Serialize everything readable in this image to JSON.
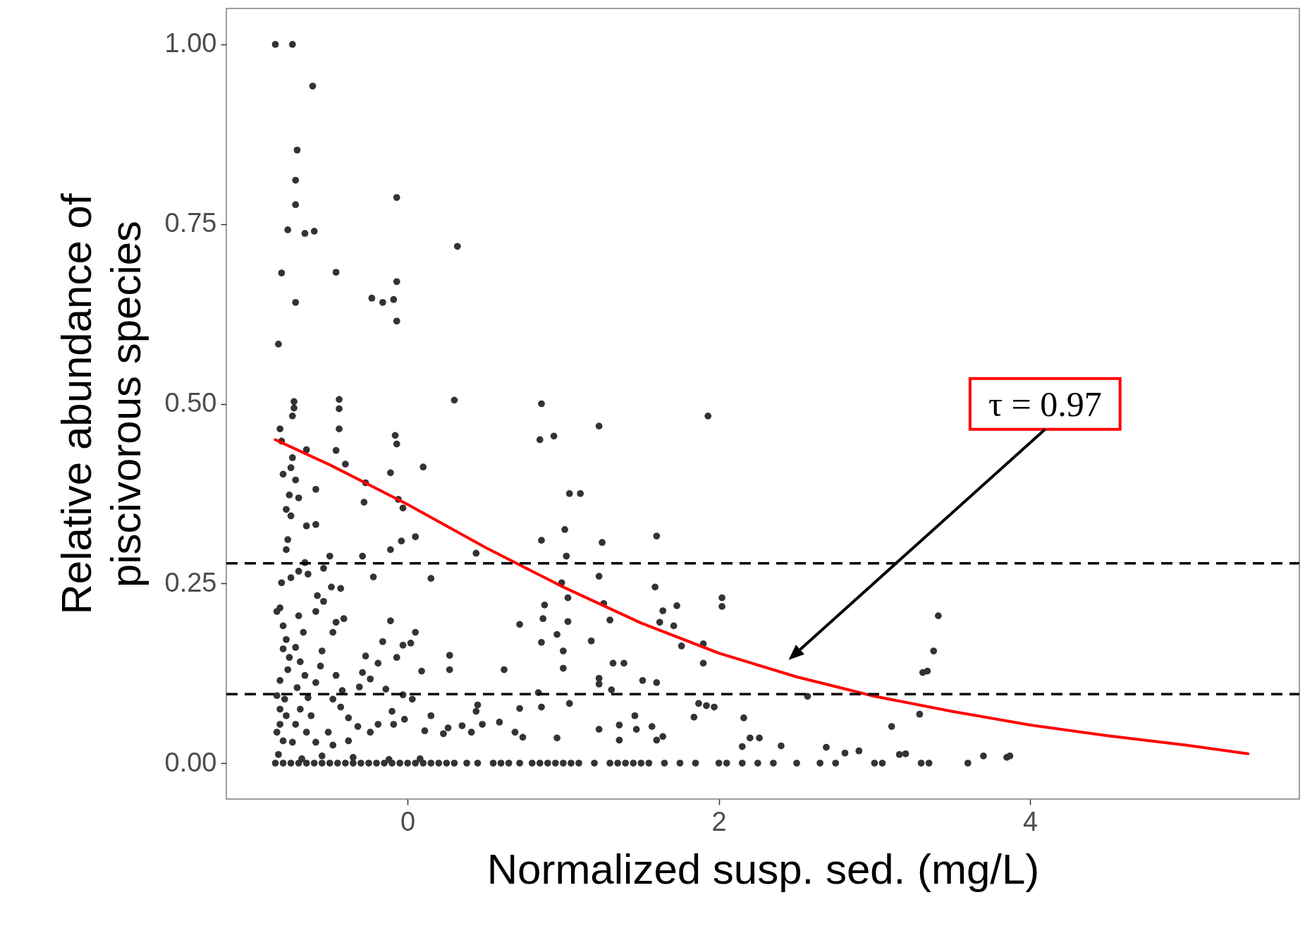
{
  "chart_data": {
    "type": "scatter",
    "xlabel": "Normalized susp. sed. (mg/L)",
    "ylabel": "Relative abundance of\npiscivorous species",
    "xlim": [
      -1.165,
      5.73
    ],
    "ylim": [
      -0.05,
      1.05
    ],
    "xticks": [
      0,
      2,
      4
    ],
    "yticks": [
      {
        "value": 0,
        "label": "0.00"
      },
      {
        "value": 0.25,
        "label": "0.25"
      },
      {
        "value": 0.5,
        "label": "0.50"
      },
      {
        "value": 0.75,
        "label": "0.75"
      },
      {
        "value": 1,
        "label": "1.00"
      }
    ],
    "grid": false,
    "series": [
      {
        "color": "#333333",
        "marker": "circle",
        "x": [
          -0.85,
          -0.74,
          -0.61,
          -0.71,
          -0.72,
          -0.72,
          -0.77,
          -0.66,
          -0.6,
          -0.07,
          0.32,
          -0.81,
          -0.46,
          -0.72,
          -0.23,
          -0.16,
          -0.09,
          -0.07,
          -0.07,
          -0.83,
          -0.44,
          -0.44,
          -0.44,
          -0.73,
          -0.73,
          -0.74,
          0.3,
          0.86,
          0.85,
          0.94,
          1.23,
          1.93,
          -0.08,
          -0.07,
          -0.82,
          -0.65,
          -0.46,
          -0.4,
          0.1,
          -0.27,
          -0.11,
          -0.06,
          -0.03,
          -0.28,
          -0.59,
          -0.78,
          -0.75,
          -0.77,
          -0.65,
          -0.59,
          -0.5,
          -0.29,
          -0.11,
          -0.04,
          0.05,
          0.15,
          -0.22,
          0.44,
          0.86,
          1.01,
          1.04,
          1.11,
          1.02,
          1.25,
          1.6,
          0.99,
          1.23,
          1.59,
          1.03,
          1.26,
          2.02,
          2.02,
          1.73,
          1.64,
          0.88,
          1.03,
          0.72,
          0.87,
          1.3,
          1.62,
          1.71,
          3.41,
          3.38,
          3.34,
          3.31,
          1.9,
          1.76,
          0.96,
          0.86,
          1.0,
          1.18,
          1.32,
          1.39,
          1.0,
          1.9,
          0.62,
          1.23,
          1.23,
          1.51,
          1.6,
          1.31,
          0.84,
          1.87,
          1.92,
          1.97,
          1.84,
          2.57,
          2.16,
          3.29,
          3.11,
          1.04,
          0.86,
          0.72,
          0.69,
          0.59,
          1.46,
          1.36,
          1.23,
          1.47,
          1.57,
          1.36,
          1.6,
          1.64,
          2.2,
          2.26,
          2.4,
          2.69,
          2.9,
          2.81,
          3.2,
          3.87,
          3.16,
          2.15,
          0.74,
          0.96,
          0.27,
          0.27,
          0.05,
          0.02,
          0.09,
          -0.03,
          -0.11,
          -0.07,
          -0.16,
          -0.27,
          -0.19,
          -0.29,
          -0.24,
          -0.31,
          -0.14,
          -0.03,
          0.03,
          -0.1,
          -0.02,
          0.15,
          0.26,
          0.44,
          0.45,
          0.41,
          0.48,
          0.35,
          0.23,
          0.11,
          -0.09,
          -0.19,
          -0.24,
          -0.32,
          -0.38,
          -0.43,
          -0.48,
          -0.42,
          -0.46,
          -0.59,
          -0.56,
          -0.55,
          -0.48,
          -0.46,
          -0.41,
          -0.59,
          -0.54,
          -0.58,
          -0.49,
          -0.43,
          -0.54,
          -0.64,
          -0.66,
          -0.7,
          -0.75,
          -0.81,
          -0.84,
          -0.82,
          -0.8,
          -0.78,
          -0.8,
          -0.76,
          -0.77,
          -0.82,
          -0.84,
          -0.79,
          -0.82,
          -0.78,
          -0.82,
          -0.84,
          -0.8,
          -0.7,
          -0.67,
          -0.72,
          -0.69,
          -0.66,
          -0.71,
          -0.64,
          -0.69,
          -0.62,
          -0.72,
          -0.65,
          -0.74,
          -0.59,
          -0.51,
          -0.48,
          -0.38,
          -0.75,
          -0.8,
          -0.76,
          -0.7,
          -0.72,
          -0.74,
          -0.81,
          -0.78,
          -0.85,
          -0.8,
          -0.75,
          -0.7,
          -0.65,
          -0.6,
          -0.55,
          -0.5,
          -0.45,
          -0.4,
          -0.35,
          -0.3,
          -0.25,
          -0.2,
          -0.15,
          -0.1,
          -0.05,
          0,
          0.05,
          0.1,
          0.15,
          0.2,
          0.25,
          0.3,
          0.38,
          0.45,
          0.55,
          0.6,
          0.65,
          0.72,
          0.8,
          0.85,
          0.9,
          0.95,
          1.0,
          1.05,
          1.1,
          1.2,
          1.3,
          1.35,
          1.4,
          1.45,
          1.5,
          1.55,
          1.65,
          1.75,
          1.85,
          2.0,
          2.05,
          2.15,
          2.25,
          2.35,
          2.5,
          2.65,
          2.75,
          3.0,
          3.05,
          3.3,
          3.35,
          3.6,
          3.7,
          3.85,
          -0.83,
          -0.68,
          -0.55,
          -0.35,
          -0.12,
          0.08
        ],
        "values": [
          1.0,
          1.0,
          0.942,
          0.853,
          0.811,
          0.777,
          0.742,
          0.737,
          0.74,
          0.787,
          0.719,
          0.682,
          0.683,
          0.641,
          0.647,
          0.641,
          0.645,
          0.67,
          0.615,
          0.583,
          0.506,
          0.493,
          0.465,
          0.503,
          0.494,
          0.483,
          0.505,
          0.5,
          0.45,
          0.455,
          0.469,
          0.483,
          0.456,
          0.444,
          0.465,
          0.436,
          0.435,
          0.416,
          0.412,
          0.39,
          0.404,
          0.367,
          0.355,
          0.363,
          0.381,
          0.353,
          0.344,
          0.311,
          0.33,
          0.332,
          0.288,
          0.288,
          0.297,
          0.309,
          0.315,
          0.257,
          0.259,
          0.292,
          0.31,
          0.325,
          0.375,
          0.375,
          0.288,
          0.307,
          0.316,
          0.251,
          0.26,
          0.245,
          0.23,
          0.222,
          0.23,
          0.218,
          0.219,
          0.212,
          0.22,
          0.197,
          0.193,
          0.201,
          0.199,
          0.196,
          0.191,
          0.205,
          0.156,
          0.128,
          0.126,
          0.166,
          0.163,
          0.179,
          0.168,
          0.156,
          0.17,
          0.139,
          0.139,
          0.132,
          0.139,
          0.13,
          0.118,
          0.11,
          0.115,
          0.112,
          0.102,
          0.098,
          0.083,
          0.08,
          0.078,
          0.064,
          0.093,
          0.063,
          0.068,
          0.051,
          0.083,
          0.078,
          0.076,
          0.043,
          0.057,
          0.066,
          0.053,
          0.047,
          0.047,
          0.051,
          0.032,
          0.032,
          0.037,
          0.035,
          0.035,
          0.024,
          0.022,
          0.017,
          0.014,
          0.013,
          0.01,
          0.012,
          0.023,
          0.036,
          0.035,
          0.15,
          0.13,
          0.182,
          0.167,
          0.128,
          0.164,
          0.198,
          0.147,
          0.169,
          0.149,
          0.139,
          0.126,
          0.117,
          0.106,
          0.103,
          0.095,
          0.089,
          0.072,
          0.061,
          0.066,
          0.049,
          0.072,
          0.081,
          0.043,
          0.054,
          0.052,
          0.041,
          0.045,
          0.054,
          0.054,
          0.043,
          0.051,
          0.063,
          0.078,
          0.089,
          0.101,
          0.122,
          0.112,
          0.135,
          0.156,
          0.182,
          0.196,
          0.201,
          0.211,
          0.225,
          0.233,
          0.245,
          0.243,
          0.271,
          0.263,
          0.279,
          0.267,
          0.258,
          0.251,
          0.211,
          0.216,
          0.191,
          0.172,
          0.159,
          0.147,
          0.13,
          0.115,
          0.094,
          0.089,
          0.075,
          0.066,
          0.054,
          0.043,
          0.031,
          0.205,
          0.182,
          0.161,
          0.141,
          0.122,
          0.105,
          0.091,
          0.075,
          0.066,
          0.054,
          0.043,
          0.029,
          0.029,
          0.043,
          0.025,
          0.031,
          0.411,
          0.402,
          0.373,
          0.369,
          0.394,
          0.425,
          0.448,
          0.297,
          0,
          0,
          0,
          0,
          0,
          0,
          0,
          0,
          0,
          0,
          0,
          0,
          0,
          0,
          0,
          0,
          0,
          0,
          0,
          0,
          0,
          0,
          0,
          0,
          0,
          0,
          0,
          0,
          0,
          0,
          0,
          0,
          0,
          0,
          0,
          0,
          0,
          0,
          0,
          0,
          0,
          0,
          0,
          0,
          0,
          0,
          0,
          0,
          0,
          0,
          0,
          0,
          0,
          0,
          0,
          0,
          0,
          0,
          0,
          0,
          0.01,
          0.008,
          0.012,
          0.006,
          0.01,
          0.008,
          0.005,
          0.006
        ]
      },
      {
        "type": "line",
        "color": "#ff0000",
        "x": [
          -0.85,
          -0.5,
          0,
          0.5,
          1,
          1.5,
          2,
          2.5,
          3,
          3.5,
          4,
          4.5,
          5,
          5.4
        ],
        "values": [
          0.45,
          0.415,
          0.36,
          0.3,
          0.245,
          0.195,
          0.153,
          0.12,
          0.093,
          0.072,
          0.053,
          0.038,
          0.025,
          0.013
        ]
      }
    ],
    "ref_lines": [
      {
        "axis": "y",
        "value": 0.278,
        "color": "#000000",
        "line_style": "dashed"
      },
      {
        "axis": "y",
        "value": 0.096,
        "color": "#000000",
        "line_style": "dashed"
      }
    ],
    "annotations": [
      "τ = 0.97"
    ]
  }
}
